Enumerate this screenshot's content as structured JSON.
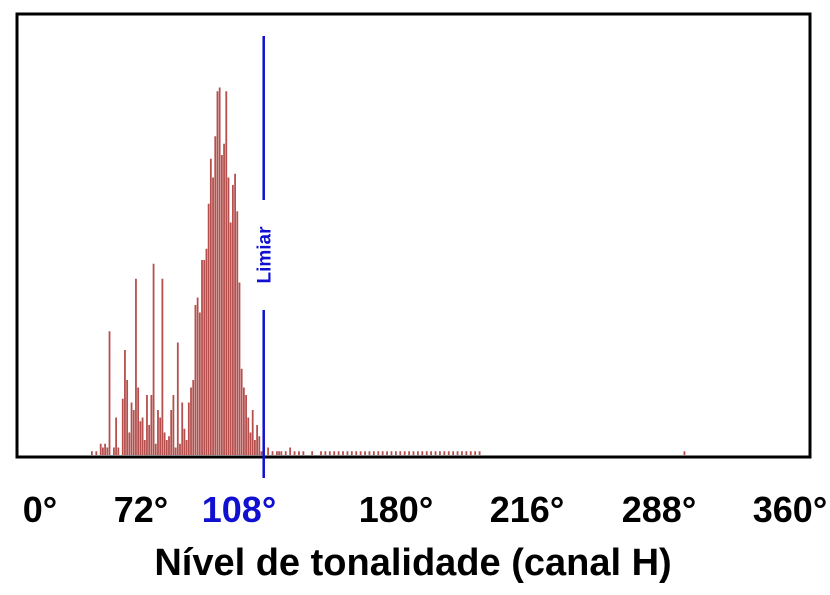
{
  "chart_data": {
    "type": "bar",
    "xlabel": "Nível de tonalidade (canal H)",
    "ylabel": "",
    "xlim": [
      -4,
      356
    ],
    "ylim": [
      0,
      100
    ],
    "grid": false,
    "colors": {
      "bars": "#b5504e",
      "threshold": "#1010d0",
      "frame": "#000000"
    },
    "ticks": [
      {
        "value": 0,
        "label": "0°",
        "highlight": false
      },
      {
        "value": 72,
        "label": "72°",
        "highlight": false
      },
      {
        "value": 108,
        "label": "108°",
        "highlight": true
      },
      {
        "value": 180,
        "label": "180°",
        "highlight": false
      },
      {
        "value": 216,
        "label": "216°",
        "highlight": false
      },
      {
        "value": 288,
        "label": "288°",
        "highlight": false
      },
      {
        "value": 360,
        "label": "360°",
        "highlight": false
      }
    ],
    "threshold": {
      "value": 108,
      "label": "Limiar"
    },
    "series": [
      {
        "x": [
          30,
          32,
          34,
          35,
          36,
          37,
          38,
          40,
          41,
          42,
          44,
          45,
          46,
          47,
          48,
          49,
          50,
          51,
          52,
          53,
          54,
          55,
          56,
          57,
          58,
          59,
          60,
          61,
          62,
          63,
          64,
          65,
          66,
          67,
          68,
          69,
          70,
          71,
          72,
          73,
          74,
          75,
          76,
          77,
          78,
          79,
          80,
          81,
          82,
          83,
          84,
          85,
          86,
          87,
          88,
          89,
          90,
          91,
          92,
          93,
          94,
          95,
          96,
          97,
          98,
          99,
          100,
          101,
          102,
          103,
          104,
          105,
          106,
          107,
          108,
          110,
          112,
          114,
          115,
          116,
          118,
          120,
          122,
          124,
          126,
          130,
          134,
          136,
          138,
          140,
          142,
          144,
          146,
          148,
          150,
          152,
          154,
          156,
          158,
          160,
          162,
          164,
          166,
          168,
          170,
          172,
          174,
          176,
          178,
          180,
          182,
          184,
          186,
          188,
          190,
          192,
          194,
          196,
          198,
          200,
          202,
          204,
          206,
          299
        ],
        "values": [
          1,
          1,
          3,
          2,
          3,
          2,
          33,
          2,
          10,
          2,
          15,
          28,
          20,
          6,
          14,
          12,
          47,
          18,
          9,
          10,
          4,
          16,
          8,
          16,
          51,
          3,
          12,
          10,
          47,
          6,
          4,
          5,
          12,
          16,
          2,
          30,
          3,
          14,
          7,
          4,
          14,
          18,
          20,
          40,
          42,
          38,
          52,
          52,
          55,
          67,
          79,
          74,
          85,
          97,
          98,
          80,
          83,
          97,
          74,
          62,
          72,
          75,
          65,
          46,
          23,
          18,
          16,
          10,
          6,
          12,
          4,
          8,
          5,
          1,
          2,
          2,
          1,
          1,
          1,
          1,
          1,
          2,
          1,
          1,
          1,
          1,
          1,
          1,
          1,
          1,
          1,
          1,
          1,
          1,
          1,
          1,
          1,
          1,
          1,
          1,
          1,
          1,
          1,
          1,
          1,
          1,
          1,
          1,
          1,
          1,
          1,
          1,
          1,
          1,
          1,
          1,
          1,
          1,
          1,
          1,
          1,
          1,
          1,
          1
        ]
      }
    ]
  }
}
